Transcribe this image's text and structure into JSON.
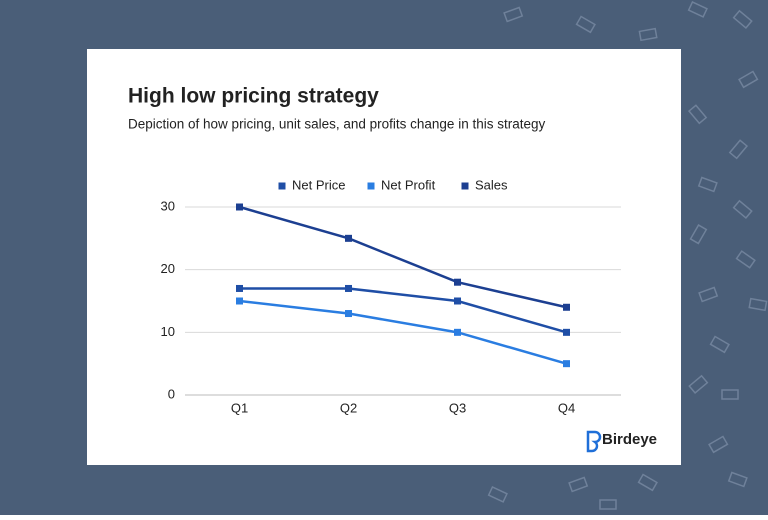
{
  "chart_data": {
    "type": "line",
    "title": "High low pricing strategy",
    "subtitle": "Depiction of how pricing, unit sales, and profits change in this strategy",
    "categories": [
      "Q1",
      "Q2",
      "Q3",
      "Q4"
    ],
    "series": [
      {
        "name": "Net Price",
        "color": "#1f4ea6",
        "values": [
          17,
          17,
          15,
          10
        ]
      },
      {
        "name": "Net Profit",
        "color": "#2a7de1",
        "values": [
          15,
          13,
          10,
          5
        ]
      },
      {
        "name": "Sales",
        "color": "#1c3f91",
        "values": [
          30,
          25,
          18,
          14
        ]
      }
    ],
    "ylim": [
      0,
      30
    ],
    "yticks": [
      0,
      10,
      20,
      30
    ],
    "grid": true,
    "legend": "top"
  },
  "logo": "Birdeye"
}
